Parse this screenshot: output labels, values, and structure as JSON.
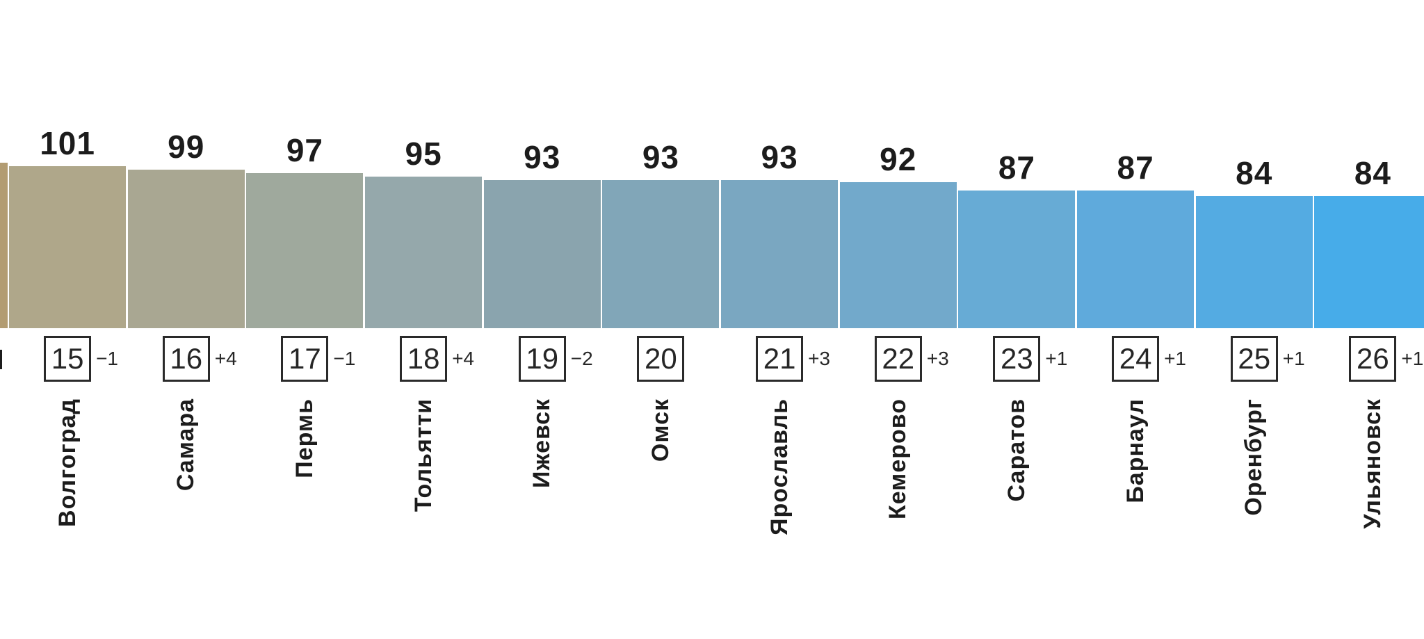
{
  "chart_data": {
    "type": "bar",
    "title": "",
    "xlabel": "",
    "ylabel": "",
    "grid": false,
    "legend": false,
    "categories": [
      "Волгоград",
      "Самара",
      "Пермь",
      "Тольятти",
      "Ижевск",
      "Омск",
      "Ярославль",
      "Кемерово",
      "Саратов",
      "Барнаул",
      "Оренбург",
      "Ульяновск"
    ],
    "values": [
      101,
      99,
      97,
      95,
      93,
      93,
      93,
      92,
      87,
      87,
      84,
      84
    ],
    "ranks": [
      15,
      16,
      17,
      18,
      19,
      20,
      21,
      22,
      23,
      24,
      25,
      26
    ],
    "rank_changes": [
      "−1",
      "+4",
      "−1",
      "+4",
      "−2",
      "",
      "+3",
      "+3",
      "+1",
      "+1",
      "+1",
      "+1"
    ],
    "bar_colors": [
      "#afa78a",
      "#a9a792",
      "#9fa99d",
      "#95a8ab",
      "#8aa4ae",
      "#81a6b8",
      "#7aa7c1",
      "#72a9cb",
      "#67abd5",
      "#5faadc",
      "#54abe2",
      "#47ace9"
    ],
    "left_partial_bar_color": "#b29c72",
    "value_label_color": "#1c1c1c",
    "layout_note": "cropped horizontal slice of a larger city-ranking bar chart; bars continue past both left and bottom edges"
  }
}
